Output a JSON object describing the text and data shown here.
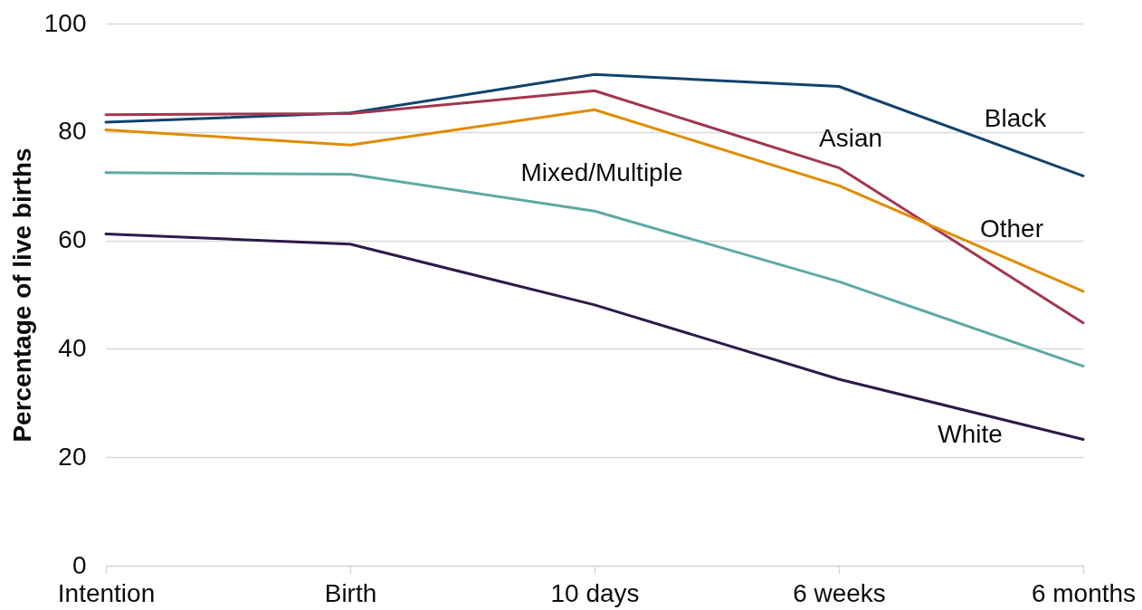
{
  "chart_data": {
    "type": "line",
    "ylabel": "Percentage of live births",
    "categories": [
      "Intention",
      "Birth",
      "10 days",
      "6 weeks",
      "6 months"
    ],
    "series": [
      {
        "name": "Black",
        "color": "#12436d",
        "values": [
          81.8,
          83.5,
          90.6,
          88.4,
          71.9
        ]
      },
      {
        "name": "Asian",
        "color": "#a2374f",
        "values": [
          83.2,
          83.4,
          87.6,
          73.4,
          44.8
        ]
      },
      {
        "name": "Other",
        "color": "#e08c00",
        "values": [
          80.4,
          77.6,
          84.1,
          70.1,
          50.6
        ]
      },
      {
        "name": "Mixed/Multiple",
        "color": "#5ea9a6",
        "values": [
          72.5,
          72.2,
          65.4,
          52.4,
          36.8
        ]
      },
      {
        "name": "White",
        "color": "#2d1a4a",
        "values": [
          61.2,
          59.3,
          48.1,
          34.4,
          23.3
        ]
      }
    ],
    "ylim": [
      0,
      100
    ],
    "yticks": [
      0,
      20,
      40,
      60,
      80,
      100
    ],
    "grid": "y",
    "line_style": "solid"
  }
}
